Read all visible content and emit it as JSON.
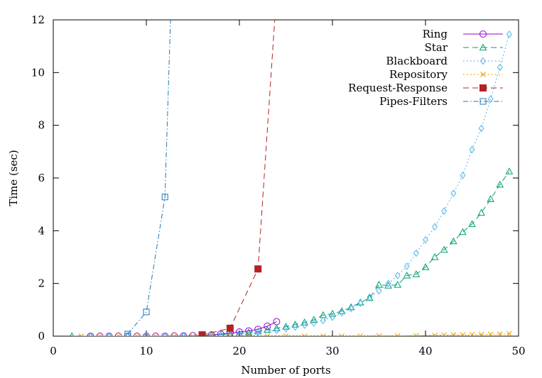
{
  "chart_data": {
    "type": "line",
    "title": "",
    "xlabel": "Number of ports",
    "ylabel": "Time (sec)",
    "xlim": [
      0,
      50
    ],
    "ylim": [
      0,
      12
    ],
    "xticks": [
      0,
      10,
      20,
      30,
      40,
      50
    ],
    "yticks": [
      0,
      2,
      4,
      6,
      8,
      10,
      12
    ],
    "grid": false,
    "legend_position": "top-right",
    "series": [
      {
        "name": "Ring",
        "color": "#9400d3",
        "marker": "circle",
        "dash": "solid",
        "points": [
          [
            4,
            0.0
          ],
          [
            5,
            0.0
          ],
          [
            6,
            0.0
          ],
          [
            7,
            0.0
          ],
          [
            8,
            0.0
          ],
          [
            9,
            0.0
          ],
          [
            10,
            0.0
          ],
          [
            11,
            0.0
          ],
          [
            12,
            0.0
          ],
          [
            13,
            0.01
          ],
          [
            14,
            0.01
          ],
          [
            15,
            0.02
          ],
          [
            16,
            0.03
          ],
          [
            17,
            0.05
          ],
          [
            18,
            0.08
          ],
          [
            19,
            0.12
          ],
          [
            20,
            0.16
          ],
          [
            21,
            0.2
          ],
          [
            22,
            0.26
          ],
          [
            23,
            0.38
          ],
          [
            24,
            0.55
          ]
        ]
      },
      {
        "name": "Star",
        "color": "#009e73",
        "marker": "triangle",
        "dash": "dashed",
        "points": [
          [
            2,
            0.0
          ],
          [
            4,
            0.0
          ],
          [
            6,
            0.0
          ],
          [
            8,
            0.0
          ],
          [
            10,
            0.0
          ],
          [
            12,
            0.0
          ],
          [
            14,
            0.01
          ],
          [
            16,
            0.02
          ],
          [
            17,
            0.04
          ],
          [
            18,
            0.06
          ],
          [
            19,
            0.08
          ],
          [
            20,
            0.1
          ],
          [
            21,
            0.14
          ],
          [
            22,
            0.18
          ],
          [
            23,
            0.24
          ],
          [
            24,
            0.3
          ],
          [
            25,
            0.36
          ],
          [
            26,
            0.44
          ],
          [
            27,
            0.52
          ],
          [
            28,
            0.62
          ],
          [
            29,
            0.8
          ],
          [
            30,
            0.85
          ],
          [
            31,
            0.95
          ],
          [
            32,
            1.1
          ],
          [
            33,
            1.28
          ],
          [
            34,
            1.45
          ],
          [
            35,
            1.95
          ],
          [
            36,
            1.92
          ],
          [
            37,
            1.95
          ],
          [
            38,
            2.3
          ],
          [
            39,
            2.35
          ],
          [
            40,
            2.62
          ],
          [
            41,
            3.0
          ],
          [
            42,
            3.28
          ],
          [
            43,
            3.6
          ],
          [
            44,
            3.95
          ],
          [
            45,
            4.25
          ],
          [
            46,
            4.68
          ],
          [
            47,
            5.2
          ],
          [
            48,
            5.75
          ],
          [
            49,
            6.25
          ]
        ]
      },
      {
        "name": "Blackboard",
        "color": "#56b4e9",
        "marker": "diamond",
        "dash": "dotted",
        "points": [
          [
            4,
            0.0
          ],
          [
            6,
            0.0
          ],
          [
            8,
            0.0
          ],
          [
            10,
            0.0
          ],
          [
            12,
            0.0
          ],
          [
            14,
            0.01
          ],
          [
            16,
            0.02
          ],
          [
            18,
            0.05
          ],
          [
            20,
            0.1
          ],
          [
            22,
            0.15
          ],
          [
            24,
            0.22
          ],
          [
            25,
            0.28
          ],
          [
            26,
            0.35
          ],
          [
            27,
            0.42
          ],
          [
            28,
            0.5
          ],
          [
            29,
            0.6
          ],
          [
            30,
            0.72
          ],
          [
            31,
            0.88
          ],
          [
            32,
            1.05
          ],
          [
            33,
            1.25
          ],
          [
            34,
            1.48
          ],
          [
            35,
            1.72
          ],
          [
            36,
            2.0
          ],
          [
            37,
            2.3
          ],
          [
            38,
            2.65
          ],
          [
            39,
            3.15
          ],
          [
            40,
            3.65
          ],
          [
            41,
            4.15
          ],
          [
            42,
            4.75
          ],
          [
            43,
            5.42
          ],
          [
            44,
            6.1
          ],
          [
            45,
            7.08
          ],
          [
            46,
            7.88
          ],
          [
            47,
            9.0
          ],
          [
            48,
            10.2
          ],
          [
            49,
            11.45
          ]
        ]
      },
      {
        "name": "Repository",
        "color": "#e69f00",
        "marker": "cross",
        "dash": "dotted",
        "points": [
          [
            3,
            0.0
          ],
          [
            5,
            0.0
          ],
          [
            7,
            0.0
          ],
          [
            9,
            0.0
          ],
          [
            11,
            0.0
          ],
          [
            13,
            0.0
          ],
          [
            15,
            0.0
          ],
          [
            17,
            0.0
          ],
          [
            19,
            0.0
          ],
          [
            21,
            0.0
          ],
          [
            23,
            0.0
          ],
          [
            25,
            0.0
          ],
          [
            27,
            0.0
          ],
          [
            29,
            0.0
          ],
          [
            31,
            0.0
          ],
          [
            33,
            0.0
          ],
          [
            35,
            0.01
          ],
          [
            37,
            0.01
          ],
          [
            39,
            0.02
          ],
          [
            41,
            0.03
          ],
          [
            42,
            0.04
          ],
          [
            43,
            0.05
          ],
          [
            44,
            0.05
          ],
          [
            45,
            0.06
          ],
          [
            46,
            0.06
          ],
          [
            47,
            0.07
          ],
          [
            48,
            0.08
          ],
          [
            49,
            0.09
          ]
        ]
      },
      {
        "name": "Request-Response",
        "color": "#b22222",
        "marker": "square-filled",
        "dash": "dashed",
        "points": [
          [
            16,
            0.05
          ],
          [
            19,
            0.3
          ],
          [
            22,
            2.55
          ],
          [
            23.8,
            12
          ]
        ],
        "marker_points": [
          [
            16,
            0.05
          ],
          [
            19,
            0.3
          ],
          [
            22,
            2.55
          ]
        ]
      },
      {
        "name": "Pipes-Filters",
        "color": "#1f77b4",
        "marker": "square-open",
        "dash": "dashdot",
        "points": [
          [
            8,
            0.08
          ],
          [
            10,
            0.92
          ],
          [
            12,
            5.28
          ],
          [
            12.6,
            12
          ]
        ],
        "marker_points": [
          [
            8,
            0.08
          ],
          [
            10,
            0.92
          ],
          [
            12,
            5.28
          ]
        ]
      }
    ]
  }
}
